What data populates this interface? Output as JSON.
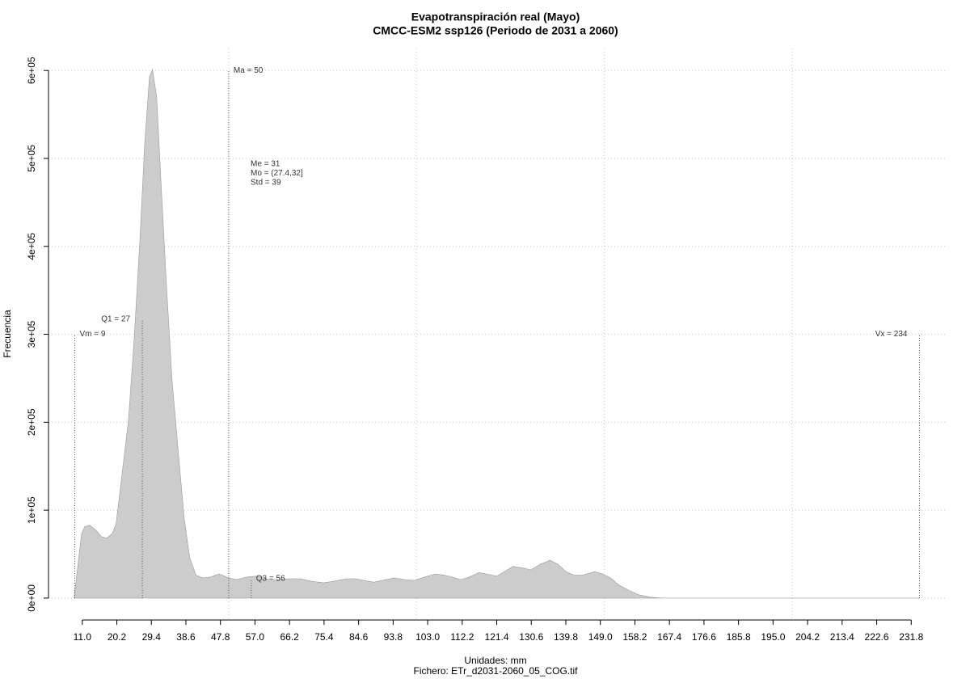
{
  "chart_data": {
    "type": "area",
    "title": "Evapotranspiración real (Mayo)",
    "subtitle": "CMCC-ESM2 ssp126 (Periodo de 2031 a 2060)",
    "x_label": "Unidades: mm",
    "caption": "Fichero: ETr_d2031-2060_05_COG.tif",
    "y_label": "Frecuencia",
    "color": "#cccccc",
    "x": [
      8.8,
      10.8,
      11.6,
      12.9,
      14.7,
      16,
      17.5,
      19,
      20,
      21.5,
      23.3,
      24.8,
      26.3,
      27.6,
      28.9,
      29.7,
      30.8,
      31.9,
      33.4,
      34.9,
      36.6,
      38.1,
      39.6,
      41.3,
      43.1,
      45.2,
      47.4,
      50,
      52.1,
      54.9,
      57.7,
      61.4,
      65.7,
      69.3,
      72.1,
      75.3,
      77.9,
      81.2,
      84,
      86.1,
      88.7,
      90.8,
      94.1,
      96.9,
      99.4,
      102.2,
      105,
      107.6,
      111.9,
      114.1,
      116.7,
      119,
      121.4,
      123.1,
      125.7,
      128.7,
      130.4,
      133,
      135.6,
      137.7,
      139.9,
      142,
      144.2,
      147.4,
      149.6,
      151.7,
      153.9,
      156.7,
      159.3,
      162.5,
      165.7,
      234
    ],
    "values": [
      0,
      73000,
      81000,
      83000,
      77000,
      70000,
      68000,
      73500,
      84500,
      138000,
      202000,
      294000,
      404000,
      515000,
      593000,
      601000,
      570000,
      478000,
      358000,
      248000,
      165000,
      92000,
      46000,
      26000,
      23000,
      24000,
      27500,
      23000,
      21000,
      24000,
      25000,
      20000,
      22000,
      22000,
      19000,
      17500,
      19000,
      22000,
      22000,
      20000,
      18000,
      20000,
      23000,
      21000,
      20000,
      24000,
      27500,
      26000,
      21000,
      24000,
      29000,
      27000,
      25000,
      29000,
      36000,
      34000,
      32000,
      38500,
      43000,
      38500,
      30000,
      26000,
      26000,
      30000,
      27500,
      23000,
      15000,
      8500,
      3700,
      900,
      0,
      0
    ],
    "xlim": [
      2,
      241
    ],
    "ylim": [
      -24000,
      625000
    ],
    "xticks": [
      {
        "value": 11,
        "label": "11.0"
      },
      20.2,
      29.4,
      38.6,
      47.8,
      {
        "value": 57,
        "label": "57.0"
      },
      66.2,
      75.4,
      84.6,
      93.8,
      {
        "value": 103,
        "label": "103.0"
      },
      112.2,
      121.4,
      130.6,
      139.8,
      {
        "value": 149,
        "label": "149.0"
      },
      158.2,
      167.4,
      176.6,
      185.8,
      {
        "value": 195,
        "label": "195.0"
      },
      204.2,
      213.4,
      222.6,
      231.8
    ],
    "yticks": [
      {
        "value": 0,
        "label": "0e+00"
      },
      {
        "value": 100000,
        "label": "1e+05"
      },
      {
        "value": 200000,
        "label": "2e+05"
      },
      {
        "value": 300000,
        "label": "3e+05"
      },
      {
        "value": 400000,
        "label": "4e+05"
      },
      {
        "value": 500000,
        "label": "5e+05"
      },
      {
        "value": 600000,
        "label": "6e+05"
      }
    ],
    "xgrid": [
      50,
      100,
      150,
      200
    ],
    "grid": true,
    "annotations": [
      {
        "label": "Vm = 9",
        "x": 9,
        "y": 300000
      },
      {
        "label": "Q1 = 27",
        "x": 27,
        "y": 317000
      },
      {
        "label": "Ma = 50",
        "x": 50,
        "y": 600000
      },
      {
        "label": "Q3 = 56",
        "x": 56,
        "y": 22000
      },
      {
        "label": "Vx = 234",
        "x": 234,
        "y": 300000
      }
    ],
    "stats": [
      "Me = 31",
      "Mo = (27.4,32]",
      "Std = 39"
    ]
  }
}
